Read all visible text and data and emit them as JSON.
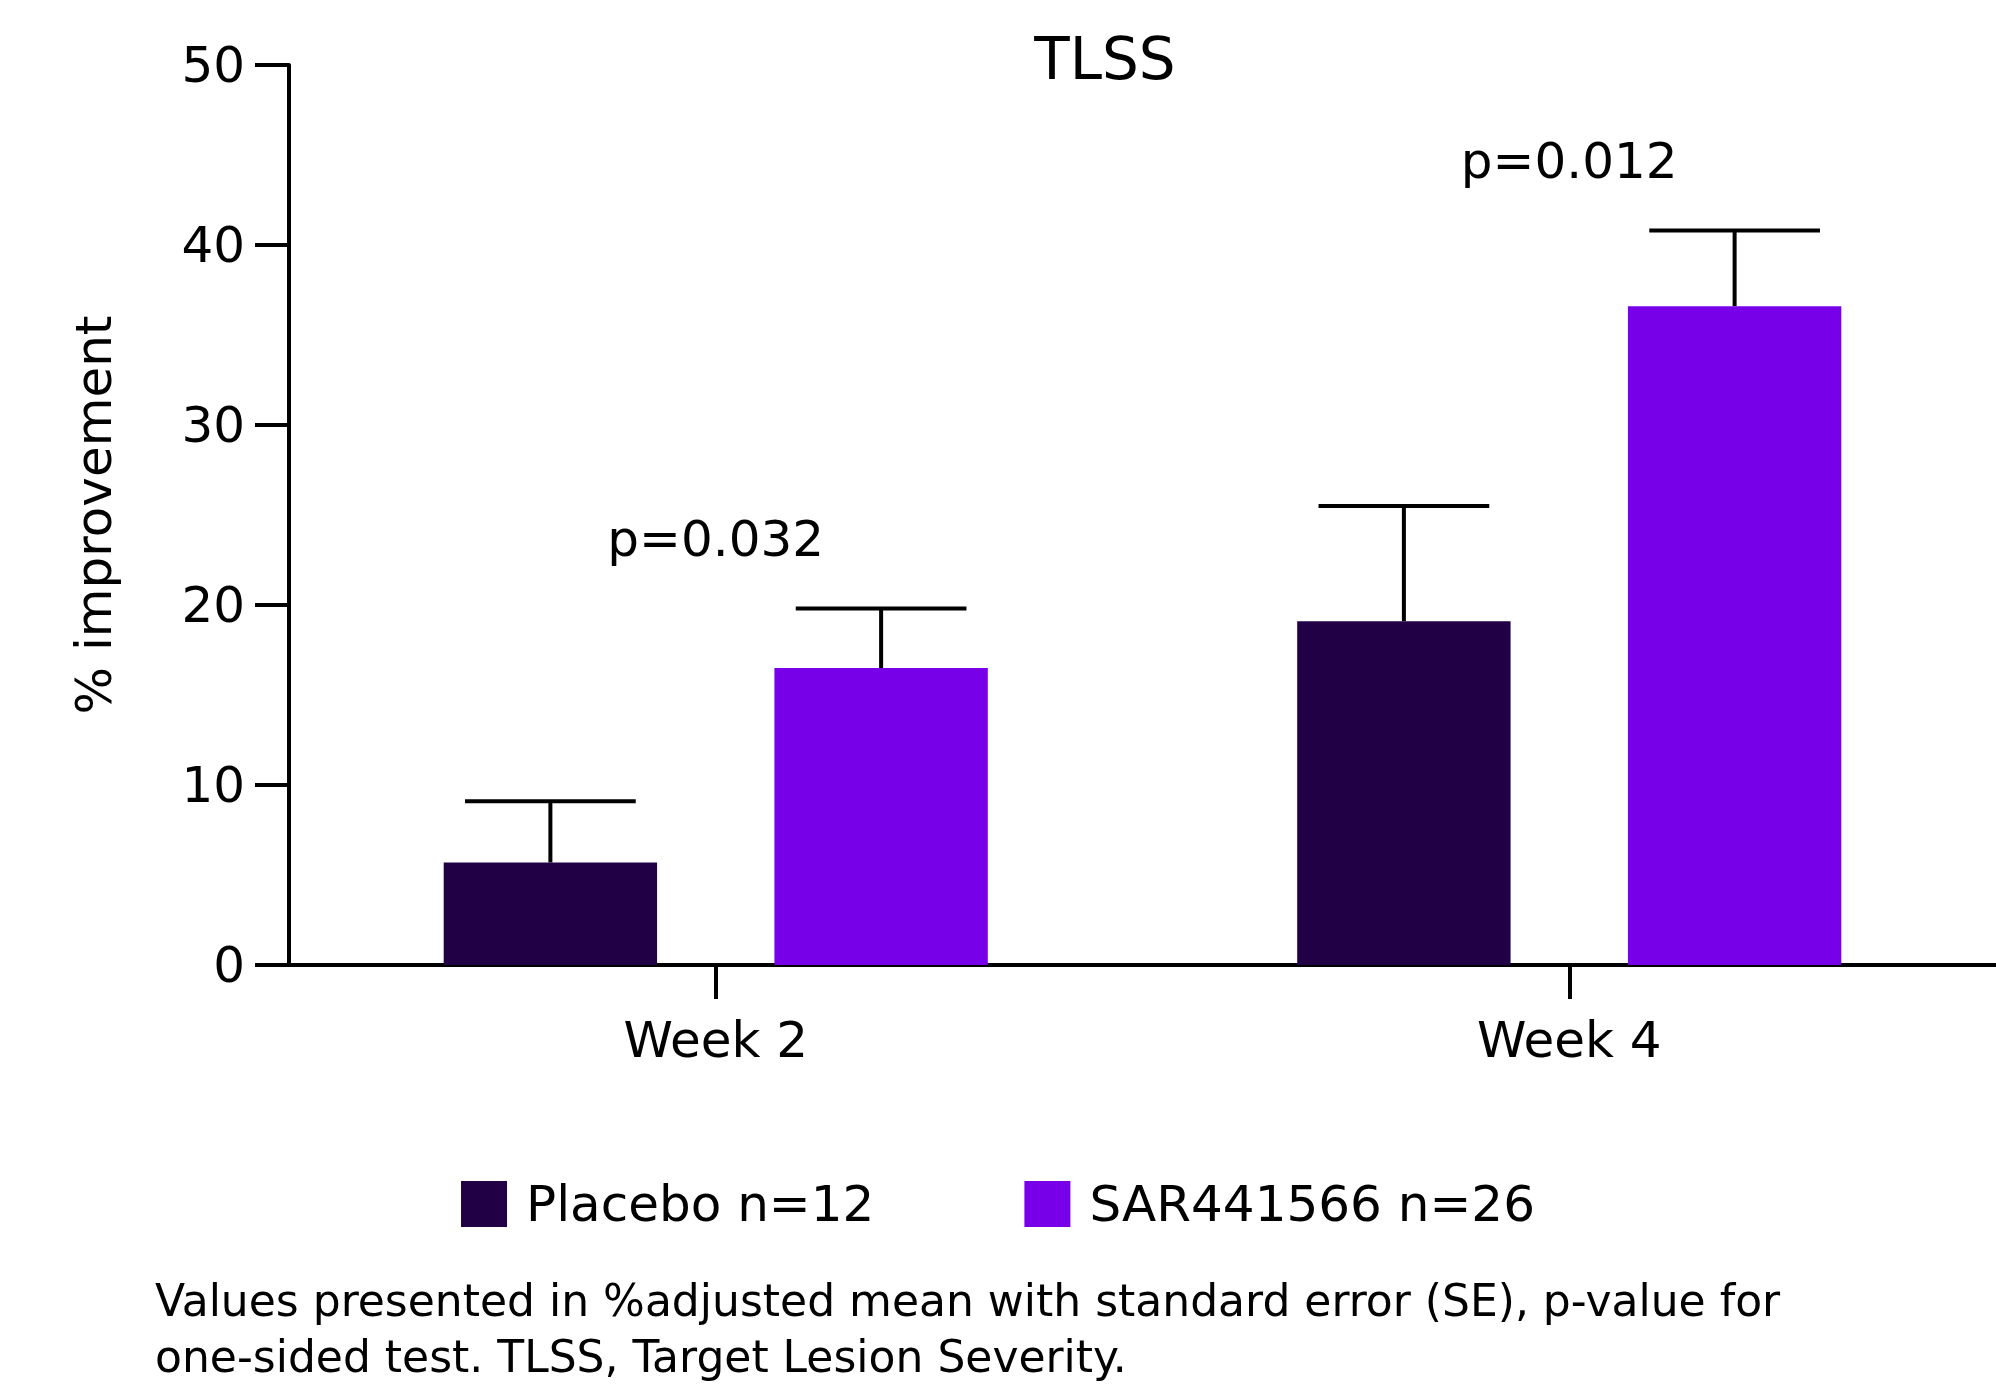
{
  "chart_data": {
    "type": "bar",
    "title": "TLSS",
    "ylabel": "% improvement",
    "categories": [
      "Week 2",
      "Week 4"
    ],
    "series": [
      {
        "name": "Placebo n=12",
        "color": "#220046",
        "values": [
          5.7,
          19.1
        ],
        "errors": [
          [
            5.7,
            9.1
          ],
          [
            19.1,
            25.5
          ]
        ]
      },
      {
        "name": "SAR441566 n=26",
        "color": "#7800e8",
        "values": [
          16.5,
          36.6
        ],
        "errors": [
          [
            16.5,
            19.8
          ],
          [
            36.6,
            40.8
          ]
        ]
      }
    ],
    "ylim": [
      0,
      50
    ],
    "yticks": [
      0,
      10,
      20,
      30,
      40,
      50
    ],
    "grid": false,
    "legend": "bottom",
    "annotations": [
      "p=0.032",
      "p=0.012",
      "Values presented in %adjusted mean with standard error (SE), p-value for one-sided test. TLSS, Target Lesion Severity."
    ]
  }
}
